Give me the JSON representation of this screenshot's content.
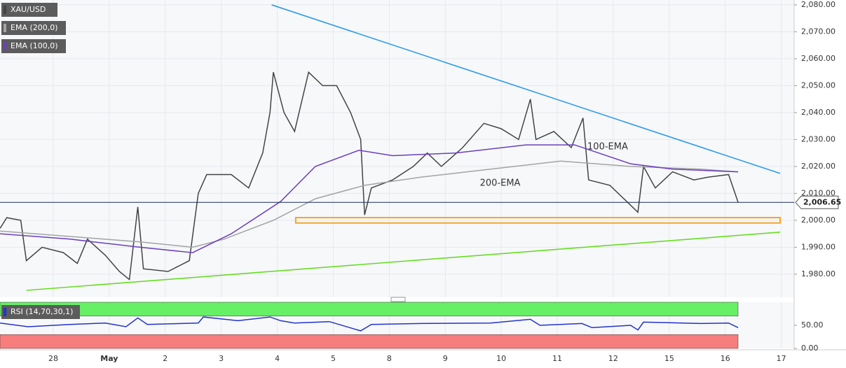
{
  "chart_data": [
    {
      "type": "line",
      "xlim": [
        -0.951,
        13.23
      ],
      "ylim": [
        1971.4,
        2081.8
      ],
      "yticks": [
        {
          "value": 1980,
          "label": "1,980.00"
        },
        {
          "value": 1990,
          "label": "1,990.00"
        },
        {
          "value": 2000,
          "label": "2,000.00"
        },
        {
          "value": 2010,
          "label": "2,010.00"
        },
        {
          "value": 2020,
          "label": "2,020.00"
        },
        {
          "value": 2030,
          "label": "2,030.00"
        },
        {
          "value": 2040,
          "label": "2,040.00"
        },
        {
          "value": 2050,
          "label": "2,050.00"
        },
        {
          "value": 2060,
          "label": "2,060.00"
        },
        {
          "value": 2070,
          "label": "2,070.00"
        },
        {
          "value": 2080,
          "label": "2,080.00"
        }
      ],
      "grid": true,
      "series": [
        {
          "name": "XAU/USD",
          "color": "#444444",
          "x": [
            -0.95,
            -0.83,
            -0.58,
            -0.48,
            -0.2,
            0.18,
            0.43,
            0.61,
            0.93,
            1.18,
            1.36,
            1.51,
            1.61,
            2.05,
            2.43,
            2.59,
            2.74,
            3.18,
            3.49,
            3.74,
            3.87,
            3.93,
            4.12,
            4.31,
            4.56,
            4.81,
            5.06,
            5.31,
            5.49,
            5.56,
            5.68,
            6.06,
            6.43,
            6.68,
            6.93,
            7.31,
            7.69,
            8.0,
            8.31,
            8.52,
            8.62,
            8.94,
            9.25,
            9.46,
            9.56,
            9.94,
            10.19,
            10.44,
            10.54,
            10.75,
            11.06,
            11.44,
            11.69,
            12.06,
            12.23
          ],
          "values": [
            1997,
            2001,
            2000,
            1985,
            1990,
            1988,
            1984,
            1993,
            1987,
            1981,
            1978,
            2005,
            1982,
            1981,
            1985,
            2010,
            2017,
            2017,
            2012,
            2025,
            2040,
            2055,
            2040,
            2033,
            2055,
            2050,
            2050,
            2040,
            2030,
            2002,
            2012,
            2015,
            2020,
            2025,
            2020,
            2027,
            2036,
            2034,
            2030,
            2045,
            2030,
            2033,
            2027,
            2038,
            2015,
            2013,
            2008,
            2003,
            2020,
            2012,
            2018,
            2015,
            2016,
            2017,
            2006.65
          ]
        },
        {
          "name": "EMA (200,0)",
          "color": "#a3a3a3",
          "x": [
            -0.95,
            0.3,
            1.55,
            2.49,
            3.05,
            3.93,
            4.68,
            5.56,
            6.56,
            7.81,
            9.06,
            10.31,
            11.56,
            12.23
          ],
          "values": [
            1996,
            1994,
            1992,
            1990,
            1993,
            2000,
            2008,
            2013,
            2016,
            2019,
            2022,
            2020,
            2019,
            2018
          ]
        },
        {
          "name": "EMA (100,0)",
          "color": "#6a3fc0",
          "x": [
            -0.95,
            0.3,
            1.55,
            2.49,
            3.18,
            4.06,
            4.68,
            5.46,
            6.06,
            7.18,
            8.44,
            9.31,
            10.31,
            11.06,
            12.23
          ],
          "values": [
            1995,
            1993,
            1990,
            1988,
            1995,
            2007,
            2020,
            2026,
            2024,
            2025,
            2028,
            2028,
            2021,
            2019,
            2018
          ]
        }
      ],
      "trendlines": [
        {
          "color": "#2d9bf0",
          "x": [
            3.9,
            12.98
          ],
          "values": [
            2080,
            2017.4
          ]
        },
        {
          "color": "#66dd22",
          "x": [
            -0.48,
            12.98
          ],
          "values": [
            1974,
            1995.6
          ]
        }
      ],
      "zone": {
        "color": "#f5a623",
        "x": [
          4.33,
          12.98
        ],
        "values": [
          1999,
          2001
        ]
      },
      "annotations": [
        {
          "text": "100-EMA",
          "x": 9.9,
          "value": 2027.3,
          "color": "#6a3fc0"
        },
        {
          "text": "200-EMA",
          "x": 7.98,
          "value": 2013.8,
          "color": "#777777"
        }
      ],
      "last_price": 2006.65,
      "last_price_label": "2,006.65",
      "last_price_color": "#1a2d5a"
    },
    {
      "type": "line",
      "xlim": [
        -0.951,
        13.23
      ],
      "ylim": [
        0,
        100
      ],
      "yticks": [
        {
          "value": 0,
          "label": "0.00"
        },
        {
          "value": 50,
          "label": "50.00"
        }
      ],
      "xticks": [
        {
          "value": 0,
          "label": "28"
        },
        {
          "value": 1,
          "label": "May"
        },
        {
          "value": 2,
          "label": "2"
        },
        {
          "value": 3,
          "label": "3"
        },
        {
          "value": 4,
          "label": "4"
        },
        {
          "value": 5,
          "label": "5"
        },
        {
          "value": 6,
          "label": "8"
        },
        {
          "value": 7,
          "label": "9"
        },
        {
          "value": 8,
          "label": "10"
        },
        {
          "value": 9,
          "label": "11"
        },
        {
          "value": 10,
          "label": "12"
        },
        {
          "value": 11,
          "label": "15"
        },
        {
          "value": 12,
          "label": "16"
        },
        {
          "value": 13,
          "label": "17"
        }
      ],
      "bands": [
        {
          "color": "#66f066",
          "values": [
            70,
            100
          ]
        },
        {
          "color": "#f87d7d",
          "values": [
            0,
            30
          ]
        }
      ],
      "series": [
        {
          "name": "RSI (14,70,30,1)",
          "color": "#2233cc",
          "x": [
            -0.95,
            -0.45,
            0.3,
            0.93,
            1.3,
            1.51,
            1.68,
            2.59,
            2.68,
            3.3,
            3.87,
            4.06,
            4.31,
            4.93,
            5.49,
            5.68,
            6.56,
            7.81,
            8.52,
            8.69,
            9.44,
            9.62,
            10.31,
            10.44,
            10.54,
            11.56,
            12.06,
            12.23
          ],
          "values": [
            55,
            47,
            52,
            55,
            47,
            66,
            52,
            55,
            68,
            60,
            68,
            60,
            55,
            58,
            38,
            52,
            54,
            55,
            63,
            50,
            54,
            45,
            50,
            40,
            57,
            54,
            55,
            45
          ]
        }
      ]
    }
  ]
}
